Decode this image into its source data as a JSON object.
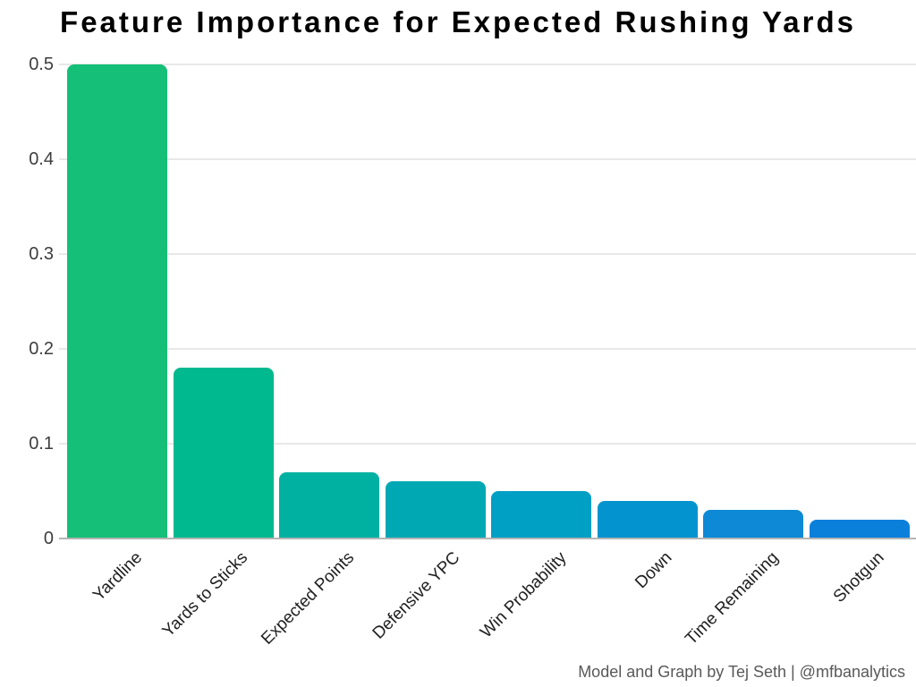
{
  "title": "Feature Importance for Expected Rushing Yards",
  "footer_credit": "Model and Graph by Tej Seth | @mfbanalytics",
  "colors": {
    "background": "#ffffff",
    "title_text": "#000000",
    "y_tick_text": "#3d3d3d",
    "x_tick_text": "#1f1f1f",
    "footer_text": "#595959",
    "gridline": "#e8e8e8",
    "baseline": "#b5b5b5"
  },
  "chart_data": {
    "type": "bar",
    "title": "Feature Importance for Expected Rushing Yards",
    "categories": [
      "Yardline",
      "Yards to Sticks",
      "Expected Points",
      "Defensive YPC",
      "Win Probability",
      "Down",
      "Time Remaining",
      "Shotgun"
    ],
    "values": [
      0.5,
      0.18,
      0.07,
      0.06,
      0.05,
      0.04,
      0.03,
      0.02
    ],
    "bar_colors": [
      "#16bf78",
      "#00b98e",
      "#00b1a2",
      "#00a8b4",
      "#009fc4",
      "#0394cf",
      "#0d89d6",
      "#0b80db"
    ],
    "xlabel": "",
    "ylabel": "",
    "ylim": [
      0,
      0.5
    ],
    "yticks": [
      0,
      0.1,
      0.2,
      0.3,
      0.4,
      0.5
    ],
    "ytick_labels": [
      "0",
      "0.1",
      "0.2",
      "0.3",
      "0.4",
      "0.5"
    ],
    "grid": "horizontal",
    "legend_position": "none",
    "annotation": "Model and Graph by Tej Seth | @mfbanalytics"
  }
}
